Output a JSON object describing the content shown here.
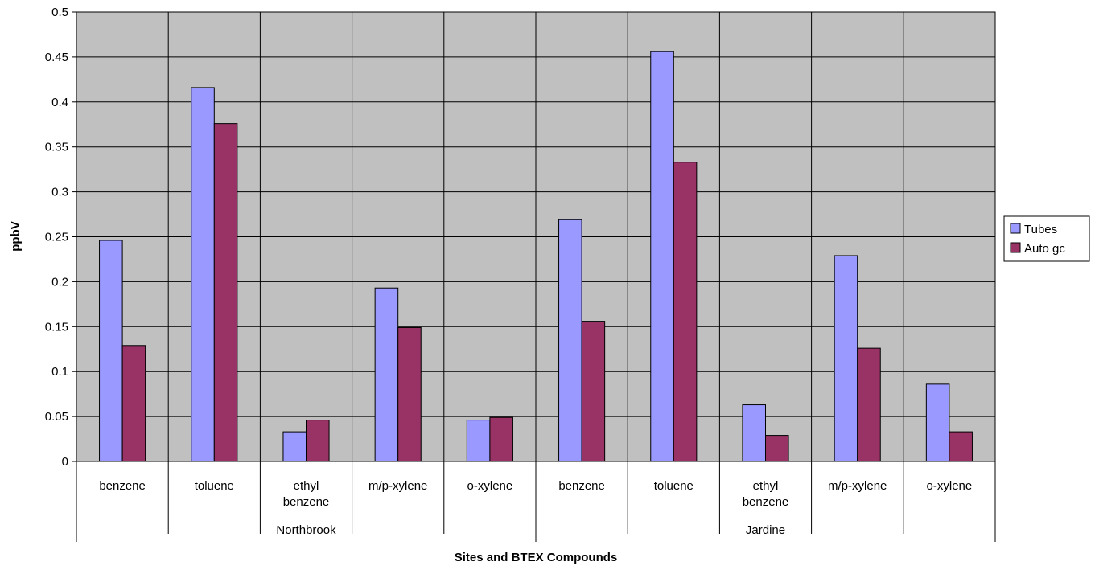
{
  "chart_data": {
    "type": "bar",
    "ylabel": "ppbV",
    "xlabel": "Sites and BTEX Compounds",
    "ylim": [
      0,
      0.5
    ],
    "ytick_step": 0.05,
    "yticks": [
      "0",
      "0.05",
      "0.1",
      "0.15",
      "0.2",
      "0.25",
      "0.3",
      "0.35",
      "0.4",
      "0.45",
      "0.5"
    ],
    "grid": true,
    "legend_position": "right",
    "groups": [
      {
        "name": "Northbrook",
        "categories": [
          "benzene",
          "toluene",
          "ethyl benzene",
          "m/p-xylene",
          "o-xylene"
        ]
      },
      {
        "name": "Jardine",
        "categories": [
          "benzene",
          "toluene",
          "ethyl benzene",
          "m/p-xylene",
          "o-xylene"
        ]
      }
    ],
    "series": [
      {
        "name": "Tubes",
        "color": "#9999ff",
        "values": [
          0.246,
          0.416,
          0.033,
          0.193,
          0.046,
          0.269,
          0.456,
          0.063,
          0.229,
          0.086
        ]
      },
      {
        "name": "Auto gc",
        "color": "#993366",
        "values": [
          0.129,
          0.376,
          0.046,
          0.149,
          0.049,
          0.156,
          0.333,
          0.029,
          0.126,
          0.033
        ]
      }
    ],
    "plot_background": "#c0c0c0"
  }
}
